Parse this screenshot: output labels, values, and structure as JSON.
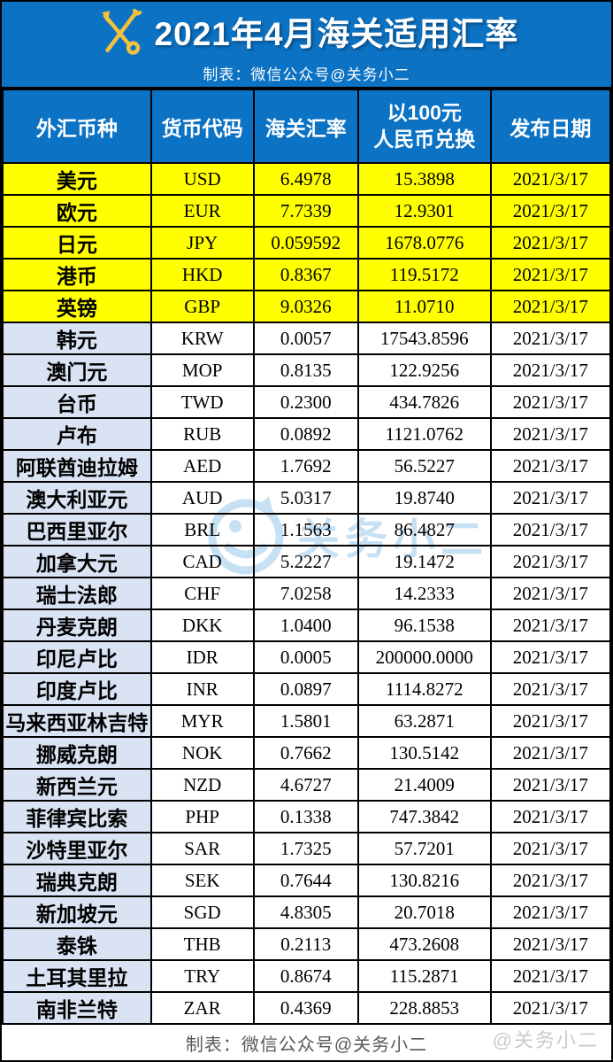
{
  "banner": {
    "title": "2021年4月海关适用汇率",
    "subtitle": "制表：微信公众号@关务小二",
    "icon": "customs-key-caduceus-icon"
  },
  "table": {
    "columns": [
      "外汇币种",
      "货币代码",
      "海关汇率",
      "以100元\n人民币兑换",
      "发布日期"
    ],
    "rows": [
      {
        "name": "美元",
        "code": "USD",
        "rate": "6.4978",
        "per100": "15.3898",
        "date": "2021/3/17",
        "highlight": true
      },
      {
        "name": "欧元",
        "code": "EUR",
        "rate": "7.7339",
        "per100": "12.9301",
        "date": "2021/3/17",
        "highlight": true
      },
      {
        "name": "日元",
        "code": "JPY",
        "rate": "0.059592",
        "per100": "1678.0776",
        "date": "2021/3/17",
        "highlight": true
      },
      {
        "name": "港币",
        "code": "HKD",
        "rate": "0.8367",
        "per100": "119.5172",
        "date": "2021/3/17",
        "highlight": true
      },
      {
        "name": "英镑",
        "code": "GBP",
        "rate": "9.0326",
        "per100": "11.0710",
        "date": "2021/3/17",
        "highlight": true
      },
      {
        "name": "韩元",
        "code": "KRW",
        "rate": "0.0057",
        "per100": "17543.8596",
        "date": "2021/3/17",
        "highlight": false
      },
      {
        "name": "澳门元",
        "code": "MOP",
        "rate": "0.8135",
        "per100": "122.9256",
        "date": "2021/3/17",
        "highlight": false
      },
      {
        "name": "台币",
        "code": "TWD",
        "rate": "0.2300",
        "per100": "434.7826",
        "date": "2021/3/17",
        "highlight": false
      },
      {
        "name": "卢布",
        "code": "RUB",
        "rate": "0.0892",
        "per100": "1121.0762",
        "date": "2021/3/17",
        "highlight": false
      },
      {
        "name": "阿联酋迪拉姆",
        "code": "AED",
        "rate": "1.7692",
        "per100": "56.5227",
        "date": "2021/3/17",
        "highlight": false
      },
      {
        "name": "澳大利亚元",
        "code": "AUD",
        "rate": "5.0317",
        "per100": "19.8740",
        "date": "2021/3/17",
        "highlight": false
      },
      {
        "name": "巴西里亚尔",
        "code": "BRL",
        "rate": "1.1563",
        "per100": "86.4827",
        "date": "2021/3/17",
        "highlight": false
      },
      {
        "name": "加拿大元",
        "code": "CAD",
        "rate": "5.2227",
        "per100": "19.1472",
        "date": "2021/3/17",
        "highlight": false
      },
      {
        "name": "瑞士法郎",
        "code": "CHF",
        "rate": "7.0258",
        "per100": "14.2333",
        "date": "2021/3/17",
        "highlight": false
      },
      {
        "name": "丹麦克朗",
        "code": "DKK",
        "rate": "1.0400",
        "per100": "96.1538",
        "date": "2021/3/17",
        "highlight": false
      },
      {
        "name": "印尼卢比",
        "code": "IDR",
        "rate": "0.0005",
        "per100": "200000.0000",
        "date": "2021/3/17",
        "highlight": false
      },
      {
        "name": "印度卢比",
        "code": "INR",
        "rate": "0.0897",
        "per100": "1114.8272",
        "date": "2021/3/17",
        "highlight": false
      },
      {
        "name": "马来西亚林吉特",
        "code": "MYR",
        "rate": "1.5801",
        "per100": "63.2871",
        "date": "2021/3/17",
        "highlight": false
      },
      {
        "name": "挪威克朗",
        "code": "NOK",
        "rate": "0.7662",
        "per100": "130.5142",
        "date": "2021/3/17",
        "highlight": false
      },
      {
        "name": "新西兰元",
        "code": "NZD",
        "rate": "4.6727",
        "per100": "21.4009",
        "date": "2021/3/17",
        "highlight": false
      },
      {
        "name": "菲律宾比索",
        "code": "PHP",
        "rate": "0.1338",
        "per100": "747.3842",
        "date": "2021/3/17",
        "highlight": false
      },
      {
        "name": "沙特里亚尔",
        "code": "SAR",
        "rate": "1.7325",
        "per100": "57.7201",
        "date": "2021/3/17",
        "highlight": false
      },
      {
        "name": "瑞典克朗",
        "code": "SEK",
        "rate": "0.7644",
        "per100": "130.8216",
        "date": "2021/3/17",
        "highlight": false
      },
      {
        "name": "新加坡元",
        "code": "SGD",
        "rate": "4.8305",
        "per100": "20.7018",
        "date": "2021/3/17",
        "highlight": false
      },
      {
        "name": "泰铢",
        "code": "THB",
        "rate": "0.2113",
        "per100": "473.2608",
        "date": "2021/3/17",
        "highlight": false
      },
      {
        "name": "土耳其里拉",
        "code": "TRY",
        "rate": "0.8674",
        "per100": "115.2871",
        "date": "2021/3/17",
        "highlight": false
      },
      {
        "name": "南非兰特",
        "code": "ZAR",
        "rate": "0.4369",
        "per100": "228.8853",
        "date": "2021/3/17",
        "highlight": false
      }
    ]
  },
  "watermark": {
    "text": "关务小二"
  },
  "footer": {
    "credit": "制表：微信公众号@关务小二",
    "watermark": "@关务小二"
  },
  "colors": {
    "banner_blue": "#0B72C4",
    "highlight_yellow": "#FFFF00",
    "row_blue": "#DAE3F3",
    "border_black": "#000000",
    "credit_gray": "#595959",
    "footer_watermark_gray": "#CBCBCB",
    "watermark_blue": "#C6E0F4",
    "emblem_gold": "#F2C13E"
  }
}
